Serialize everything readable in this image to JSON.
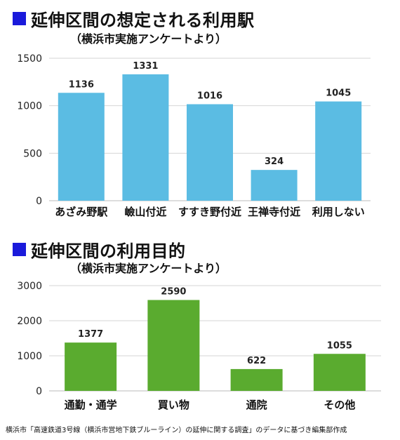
{
  "accent_square_color": "#1a1adb",
  "chart_data": [
    {
      "type": "bar",
      "title": "延伸区間の想定される利用駅",
      "subtitle": "（横浜市実施アンケートより）",
      "categories": [
        "あざみ野駅",
        "嶮山付近",
        "すすき野付近",
        "王禅寺付近",
        "利用しない"
      ],
      "values": [
        1136,
        1331,
        1016,
        324,
        1045
      ],
      "yticks": [
        0,
        500,
        1000,
        1500
      ],
      "ylim": [
        0,
        1500
      ],
      "bar_color": "#5bbce3",
      "grid": true,
      "xlabel": "",
      "ylabel": ""
    },
    {
      "type": "bar",
      "title": "延伸区間の利用目的",
      "subtitle": "（横浜市実施アンケートより）",
      "categories": [
        "通勤・通学",
        "買い物",
        "通院",
        "その他"
      ],
      "values": [
        1377,
        2590,
        622,
        1055
      ],
      "yticks": [
        0,
        1000,
        2000,
        3000
      ],
      "ylim": [
        0,
        3000
      ],
      "bar_color": "#5aab2f",
      "grid": true,
      "xlabel": "",
      "ylabel": ""
    }
  ],
  "source_note": "横浜市「高速鉄道3号線（横浜市営地下鉄ブルーライン）の延伸に関する調査」のデータに基づき編集部作成"
}
